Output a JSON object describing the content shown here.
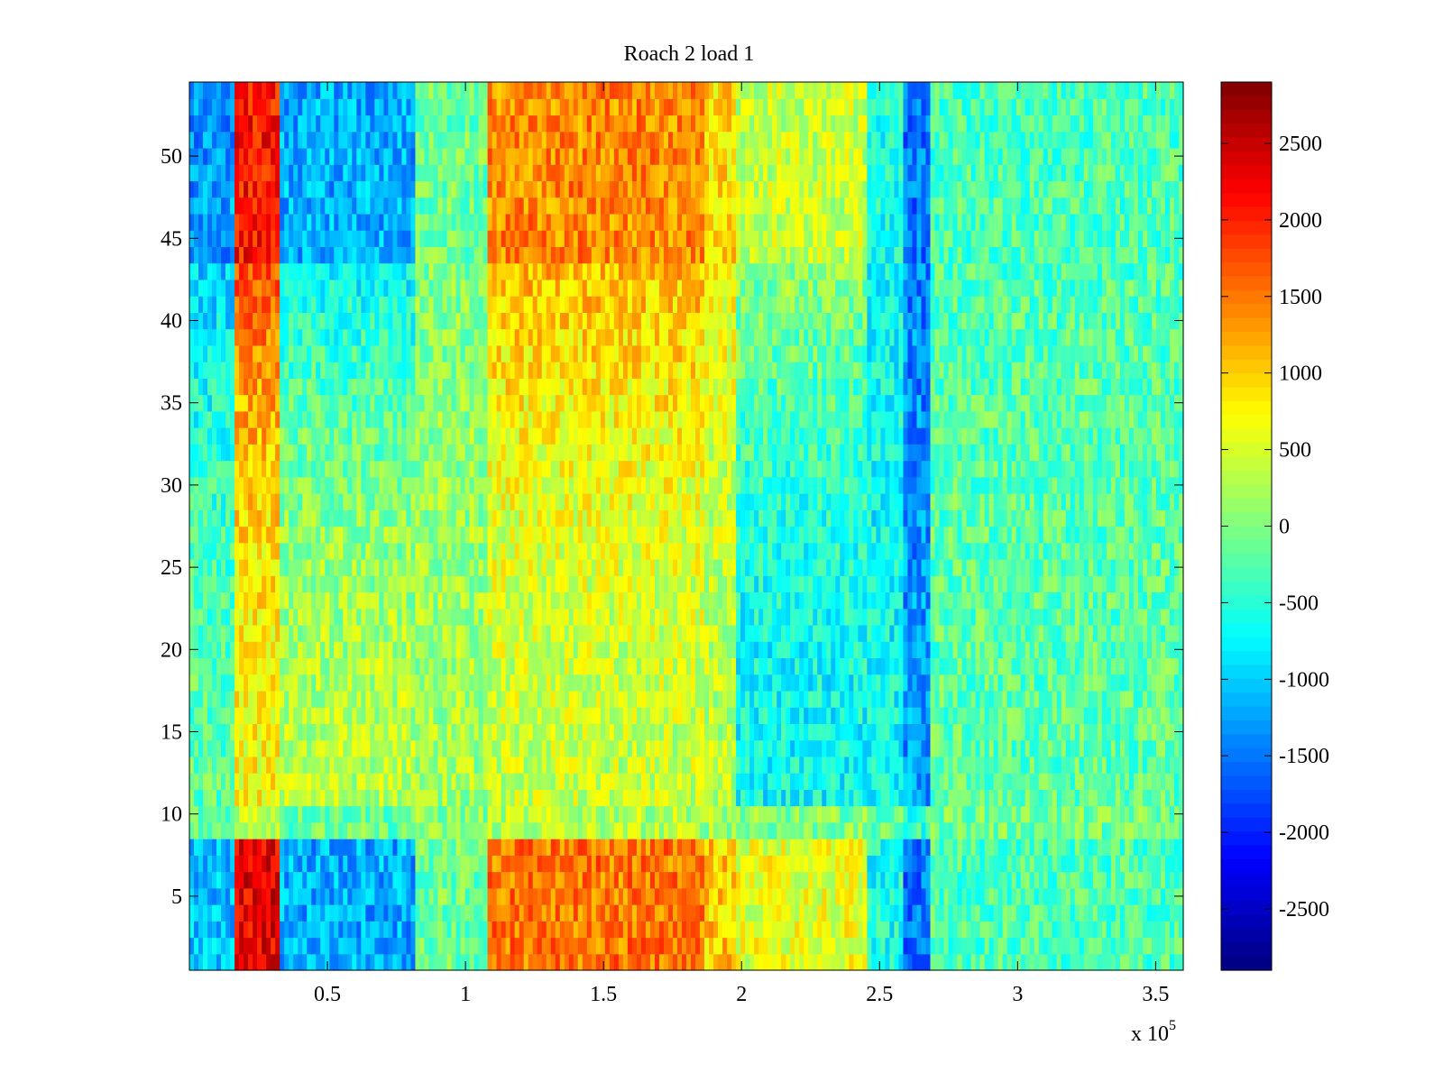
{
  "chart_data": {
    "type": "heatmap",
    "title": "Roach 2 load 1",
    "xlabel": "",
    "ylabel": "",
    "x_exponent_label": "x 10",
    "x_exponent_power": "5",
    "xlim": [
      0,
      3.6
    ],
    "ylim": [
      0.5,
      54.5
    ],
    "x_ticks": [
      0.5,
      1,
      1.5,
      2,
      2.5,
      3,
      3.5
    ],
    "x_tick_labels": [
      "0.5",
      "1",
      "1.5",
      "2",
      "2.5",
      "3",
      "3.5"
    ],
    "y_ticks": [
      5,
      10,
      15,
      20,
      25,
      30,
      35,
      40,
      45,
      50
    ],
    "y_tick_labels": [
      "5",
      "10",
      "15",
      "20",
      "25",
      "30",
      "35",
      "40",
      "45",
      "50"
    ],
    "colorbar": {
      "colormap": "jet",
      "clim": [
        -2900,
        2900
      ],
      "ticks": [
        2500,
        2000,
        1500,
        1000,
        500,
        0,
        -500,
        -1000,
        -1500,
        -2000,
        -2500
      ],
      "tick_labels": [
        "2500",
        "2000",
        "1500",
        "1000",
        "500",
        "0",
        "-500",
        "-1000",
        "-1500",
        "-2000",
        "-2500"
      ]
    },
    "grid": false,
    "legend": "none",
    "rows": 54,
    "x_bands": [
      {
        "x0": 0.0,
        "x1": 0.17,
        "value_top": -1300,
        "value_mid": -200,
        "value_bottom": -1100
      },
      {
        "x0": 0.17,
        "x1": 0.33,
        "value_top": 2100,
        "value_mid": 700,
        "value_bottom": 2300
      },
      {
        "x0": 0.33,
        "x1": 0.82,
        "value_top": -1200,
        "value_mid": 300,
        "value_bottom": -1200
      },
      {
        "x0": 0.82,
        "x1": 1.08,
        "value_top": -100,
        "value_mid": 200,
        "value_bottom": -100
      },
      {
        "x0": 1.08,
        "x1": 1.86,
        "value_top": 1400,
        "value_mid": 400,
        "value_bottom": 1500
      },
      {
        "x0": 1.86,
        "x1": 1.98,
        "value_top": 900,
        "value_mid": 300,
        "value_bottom": 1000
      },
      {
        "x0": 1.98,
        "x1": 2.46,
        "value_top": 400,
        "value_mid": -700,
        "value_bottom": 600
      },
      {
        "x0": 2.46,
        "x1": 2.58,
        "value_top": -600,
        "value_mid": -700,
        "value_bottom": -600
      },
      {
        "x0": 2.58,
        "x1": 2.69,
        "value_top": -1500,
        "value_mid": -1300,
        "value_bottom": -1500
      },
      {
        "x0": 2.69,
        "x1": 3.6,
        "value_top": -300,
        "value_mid": -200,
        "value_bottom": -300
      }
    ]
  }
}
